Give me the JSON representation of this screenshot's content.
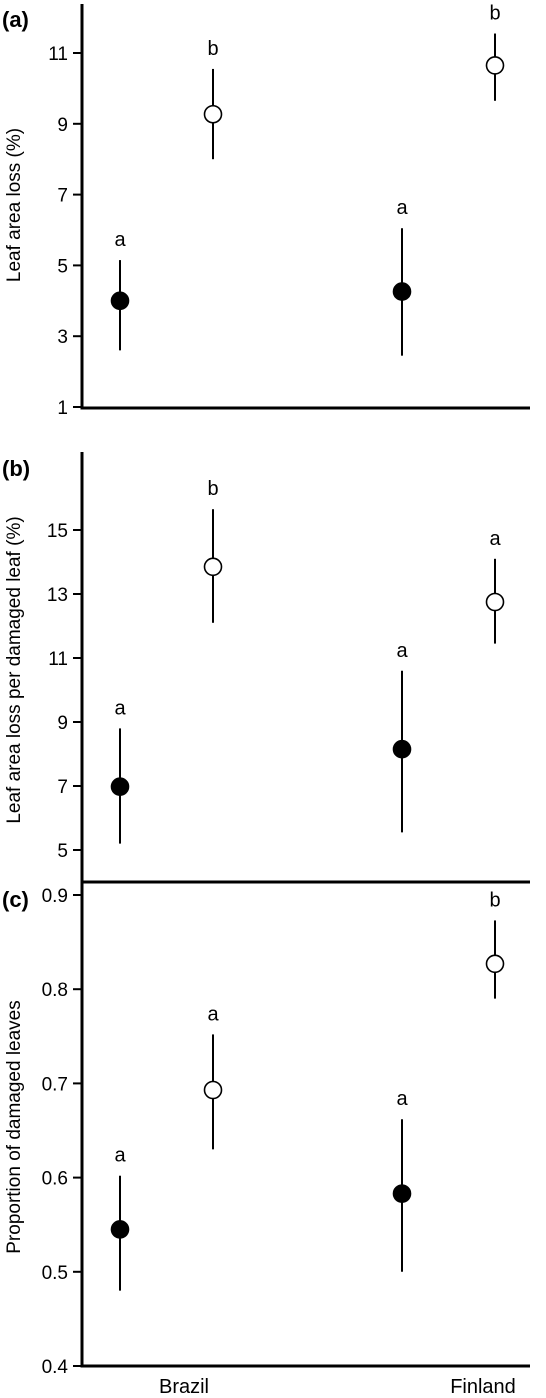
{
  "chart_data": [
    {
      "type": "scatter",
      "panel_label": "(a)",
      "ylabel": "Leaf area loss (%)",
      "ylim": [
        1,
        12.6
      ],
      "yticks": [
        1,
        3,
        5,
        7,
        9,
        11
      ],
      "categories": [
        "Brazil",
        "Finland"
      ],
      "points": [
        {
          "category": "Brazil",
          "marker": "filled",
          "y": 4.0,
          "low": 2.6,
          "high": 5.15,
          "sig": "a"
        },
        {
          "category": "Brazil",
          "marker": "open",
          "y": 9.27,
          "low": 8.0,
          "high": 10.55,
          "sig": "b"
        },
        {
          "category": "Finland",
          "marker": "filled",
          "y": 4.26,
          "low": 2.45,
          "high": 6.05,
          "sig": "a"
        },
        {
          "category": "Finland",
          "marker": "open",
          "y": 10.65,
          "low": 9.65,
          "high": 11.55,
          "sig": "b"
        }
      ]
    },
    {
      "type": "scatter",
      "panel_label": "(b)",
      "ylabel": "Leaf area loss per damaged leaf (%)",
      "ylim": [
        4.1,
        16.6
      ],
      "yticks": [
        5,
        7,
        9,
        11,
        13,
        15
      ],
      "categories": [
        "Brazil",
        "Finland"
      ],
      "points": [
        {
          "category": "Brazil",
          "marker": "filled",
          "y": 6.98,
          "low": 5.2,
          "high": 8.8,
          "sig": "a"
        },
        {
          "category": "Brazil",
          "marker": "open",
          "y": 13.85,
          "low": 12.1,
          "high": 15.65,
          "sig": "b"
        },
        {
          "category": "Finland",
          "marker": "filled",
          "y": 8.15,
          "low": 5.55,
          "high": 10.6,
          "sig": "a"
        },
        {
          "category": "Finland",
          "marker": "open",
          "y": 12.75,
          "low": 11.45,
          "high": 14.1,
          "sig": "a"
        }
      ]
    },
    {
      "type": "scatter",
      "panel_label": "(c)",
      "ylabel": "Proportion of  damaged leaves",
      "ylim": [
        0.4,
        0.95
      ],
      "yticks": [
        0.4,
        0.5,
        0.6,
        0.7,
        0.8,
        0.9
      ],
      "ytick_labels": [
        "0.4",
        "0.5",
        "0.6",
        "0.7",
        "0.8",
        "0.9"
      ],
      "categories": [
        "Brazil",
        "Finland"
      ],
      "points": [
        {
          "category": "Brazil",
          "marker": "filled",
          "y": 0.545,
          "low": 0.48,
          "high": 0.602,
          "sig": "a"
        },
        {
          "category": "Brazil",
          "marker": "open",
          "y": 0.693,
          "low": 0.63,
          "high": 0.752,
          "sig": "a"
        },
        {
          "category": "Finland",
          "marker": "filled",
          "y": 0.583,
          "low": 0.5,
          "high": 0.662,
          "sig": "a"
        },
        {
          "category": "Finland",
          "marker": "open",
          "y": 0.827,
          "low": 0.79,
          "high": 0.873,
          "sig": "b"
        }
      ]
    }
  ]
}
